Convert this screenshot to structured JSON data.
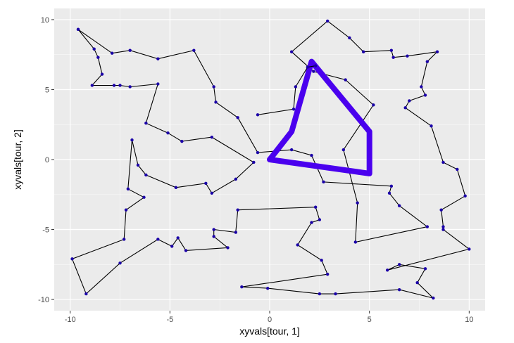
{
  "chart_data": {
    "type": "line",
    "xlabel": "xyvals[tour, 1]",
    "ylabel": "xyvals[tour, 2]",
    "xlim": [
      -10.8,
      10.8
    ],
    "ylim": [
      -10.8,
      10.8
    ],
    "x_ticks": [
      -10,
      -5,
      0,
      5,
      10
    ],
    "y_ticks": [
      -10,
      -5,
      0,
      5,
      10
    ],
    "grid": true,
    "colors": {
      "panel": "#ebebeb",
      "grid_major": "#ffffff",
      "tour_line": "#000000",
      "point": "#1a00a8",
      "highlight": "#4a00ee"
    },
    "series": [
      {
        "points": [
          [
            -9.6,
            9.3
          ],
          [
            -8.8,
            7.9
          ],
          [
            -8.6,
            7.3
          ],
          [
            -8.4,
            6.1
          ],
          [
            -8.9,
            5.3
          ],
          [
            -7.8,
            5.3
          ],
          [
            -7.5,
            5.3
          ],
          [
            -7.0,
            5.2
          ],
          [
            -5.6,
            5.4
          ],
          [
            -6.2,
            2.6
          ],
          [
            -5.1,
            1.9
          ],
          [
            -4.4,
            1.3
          ],
          [
            -2.9,
            1.6
          ],
          [
            -0.8,
            -0.2
          ],
          [
            -1.7,
            -1.4
          ],
          [
            -2.9,
            -2.4
          ],
          [
            -3.2,
            -1.7
          ],
          [
            -4.7,
            -2.0
          ],
          [
            -6.2,
            -1.1
          ],
          [
            -6.6,
            -0.4
          ],
          [
            -6.9,
            1.4
          ],
          [
            -7.1,
            -2.1
          ],
          [
            -6.3,
            -2.7
          ],
          [
            -7.2,
            -3.6
          ],
          [
            -7.3,
            -5.7
          ],
          [
            -9.9,
            -7.1
          ],
          [
            -9.2,
            -9.6
          ],
          [
            -7.5,
            -7.4
          ],
          [
            -5.6,
            -5.7
          ],
          [
            -4.9,
            -6.2
          ],
          [
            -4.6,
            -5.6
          ],
          [
            -4.2,
            -6.5
          ],
          [
            -2.1,
            -6.3
          ],
          [
            -2.8,
            -5.5
          ],
          [
            -2.8,
            -5.0
          ],
          [
            -1.7,
            -5.2
          ],
          [
            -1.6,
            -3.6
          ],
          [
            2.3,
            -3.4
          ],
          [
            2.5,
            -4.3
          ],
          [
            2.1,
            -4.5
          ],
          [
            1.4,
            -6.1
          ],
          [
            2.6,
            -7.2
          ],
          [
            2.9,
            -8.2
          ],
          [
            -1.4,
            -9.1
          ],
          [
            -0.1,
            -9.2
          ],
          [
            2.5,
            -9.6
          ],
          [
            3.3,
            -9.6
          ],
          [
            6.5,
            -9.3
          ],
          [
            8.2,
            -9.9
          ],
          [
            7.4,
            -8.8
          ],
          [
            7.8,
            -7.8
          ],
          [
            6.5,
            -7.5
          ],
          [
            5.9,
            -7.9
          ],
          [
            10.0,
            -6.4
          ],
          [
            8.7,
            -5.0
          ],
          [
            8.7,
            -4.8
          ],
          [
            8.6,
            -3.6
          ],
          [
            9.8,
            -2.6
          ],
          [
            9.4,
            -0.7
          ],
          [
            8.7,
            -0.2
          ],
          [
            8.1,
            2.4
          ],
          [
            6.8,
            3.7
          ],
          [
            7.0,
            4.2
          ],
          [
            7.8,
            4.6
          ],
          [
            7.6,
            5.2
          ],
          [
            7.9,
            7.0
          ],
          [
            8.4,
            7.7
          ],
          [
            6.9,
            7.4
          ],
          [
            6.2,
            7.3
          ],
          [
            6.1,
            7.8
          ],
          [
            4.7,
            7.7
          ],
          [
            4.0,
            8.7
          ],
          [
            2.9,
            9.9
          ],
          [
            1.1,
            7.7
          ],
          [
            2.2,
            6.3
          ],
          [
            3.8,
            5.7
          ],
          [
            5.2,
            3.9
          ],
          [
            3.7,
            0.7
          ],
          [
            4.4,
            -3.1
          ],
          [
            4.3,
            -5.9
          ],
          [
            7.9,
            -4.8
          ],
          [
            6.5,
            -3.3
          ],
          [
            6.0,
            -2.4
          ],
          [
            6.1,
            -1.9
          ],
          [
            2.7,
            -1.6
          ],
          [
            2.1,
            0.3
          ],
          [
            1.1,
            0.7
          ],
          [
            -0.6,
            0.5
          ],
          [
            -1.6,
            3.0
          ],
          [
            -2.7,
            4.1
          ],
          [
            -2.8,
            5.2
          ],
          [
            -3.8,
            7.8
          ],
          [
            -5.6,
            7.2
          ],
          [
            -7.0,
            7.8
          ],
          [
            -7.9,
            7.6
          ],
          [
            -9.6,
            9.3
          ]
        ]
      },
      {
        "highlight": true,
        "points": [
          [
            0.0,
            0.0
          ],
          [
            1.1,
            2.0
          ],
          [
            2.1,
            7.0
          ],
          [
            5.0,
            2.0
          ],
          [
            5.0,
            -1.0
          ],
          [
            0.0,
            0.0
          ]
        ]
      },
      {
        "points": [
          [
            -0.6,
            3.2
          ],
          [
            1.2,
            3.6
          ],
          [
            1.3,
            5.2
          ],
          [
            1.9,
            6.6
          ],
          [
            2.3,
            6.7
          ]
        ]
      }
    ]
  }
}
